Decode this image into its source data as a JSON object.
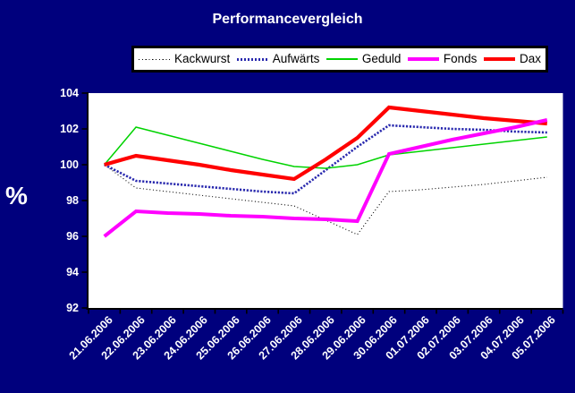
{
  "title": "Performancevergleich",
  "y_axis_label": "%",
  "colors": {
    "background": "#00007d",
    "plot_background": "#ffffff",
    "axis": "#000000",
    "axis_text": "#ffffff",
    "legend_text": "#000000",
    "legend_background": "#ffffff",
    "legend_border": "#000000"
  },
  "chart_data": {
    "type": "line",
    "title": "Performancevergleich",
    "ylabel": "%",
    "ylim": [
      92,
      104
    ],
    "y_ticks": [
      92,
      94,
      96,
      98,
      100,
      102,
      104
    ],
    "grid": false,
    "legend_position": "top",
    "x": [
      "21.06.2006",
      "22.06.2006",
      "23.06.2006",
      "24.06.2006",
      "25.06.2006",
      "26.06.2006",
      "27.06.2006",
      "28.06.2006",
      "29.06.2006",
      "30.06.2006",
      "01.07.2006",
      "02.07.2006",
      "03.07.2006",
      "04.07.2006",
      "05.07.2006"
    ],
    "series": [
      {
        "name": "Kackwurst",
        "color": "#000000",
        "line_style": "dotted",
        "width": 1.1,
        "values": [
          100.0,
          98.7,
          98.5,
          98.3,
          98.1,
          97.9,
          97.7,
          96.9,
          96.1,
          98.5,
          98.6,
          98.75,
          98.9,
          99.1,
          99.3
        ]
      },
      {
        "name": "Aufwärts",
        "color": "#2929ae",
        "line_style": "dotted",
        "width": 2.6,
        "values": [
          100.0,
          99.1,
          98.95,
          98.8,
          98.65,
          98.5,
          98.4,
          99.7,
          101.0,
          102.2,
          102.1,
          102.0,
          101.95,
          101.85,
          101.8
        ]
      },
      {
        "name": "Geduld",
        "color": "#00d300",
        "line_style": "solid",
        "width": 1.5,
        "values": [
          100.0,
          102.1,
          101.65,
          101.2,
          100.75,
          100.3,
          99.9,
          99.8,
          100.0,
          100.55,
          100.75,
          100.95,
          101.15,
          101.35,
          101.55
        ]
      },
      {
        "name": "Fonds",
        "color": "#ff00ff",
        "line_style": "solid",
        "width": 4,
        "values": [
          96.0,
          97.4,
          97.3,
          97.25,
          97.15,
          97.1,
          97.0,
          96.95,
          96.85,
          100.6,
          101.0,
          101.4,
          101.75,
          102.1,
          102.5
        ]
      },
      {
        "name": "Dax",
        "color": "#ff0000",
        "line_style": "solid",
        "width": 4.2,
        "values": [
          100.0,
          100.5,
          100.25,
          100.0,
          99.7,
          99.45,
          99.2,
          100.3,
          101.5,
          103.2,
          103.0,
          102.8,
          102.6,
          102.45,
          102.3
        ]
      }
    ]
  }
}
